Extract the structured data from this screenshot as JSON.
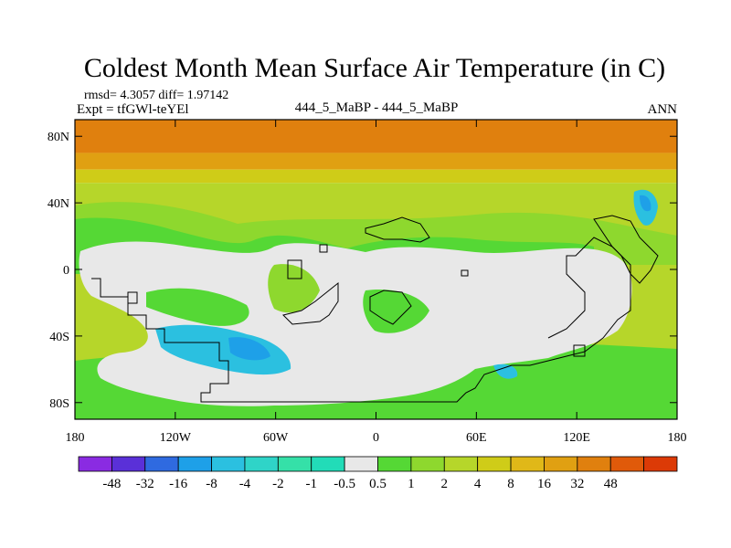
{
  "chart_data": {
    "type": "heatmap",
    "title": "Coldest Month Mean Surface Air Temperature (in C)",
    "stats_text": "rmsd= 4.3057 diff= 1.97142",
    "expt_text": "Expt = tfGWl-teYEl",
    "comparison_text": "444_5_MaBP - 444_5_MaBP",
    "season_text": "ANN",
    "x_tick_labels": [
      "180",
      "120W",
      "60W",
      "0",
      "60E",
      "120E",
      "180"
    ],
    "y_tick_labels": [
      "80N",
      "40N",
      "0",
      "40S",
      "80S"
    ],
    "x_range_deg": [
      -180,
      180
    ],
    "y_range_deg": [
      -90,
      90
    ],
    "colorbar": {
      "tick_labels": [
        "-48",
        "-32",
        "-16",
        "-8",
        "-4",
        "-2",
        "-1",
        "-0.5",
        "0.5",
        "1",
        "2",
        "4",
        "8",
        "16",
        "32",
        "48"
      ],
      "colors": [
        "#8a2be2",
        "#5a30d8",
        "#2f6ae0",
        "#1ea0e8",
        "#2bc0e0",
        "#2fd4c8",
        "#35e0a8",
        "#22dcb8",
        "#e8e8e8",
        "#55d835",
        "#8ed82e",
        "#b6d62a",
        "#cfcc18",
        "#e0b818",
        "#e0a012",
        "#e0800e",
        "#e05a0a",
        "#dc3a06"
      ]
    },
    "bands": [
      {
        "lat_top": 90,
        "lat_bottom": 70,
        "color": "#e0800e"
      },
      {
        "lat_top": 70,
        "lat_bottom": 60,
        "color": "#e0a012"
      },
      {
        "lat_top": 60,
        "lat_bottom": 52,
        "color": "#cfcc18"
      },
      {
        "lat_top": 52,
        "lat_bottom": -90,
        "color": "#b6d62a"
      }
    ]
  }
}
